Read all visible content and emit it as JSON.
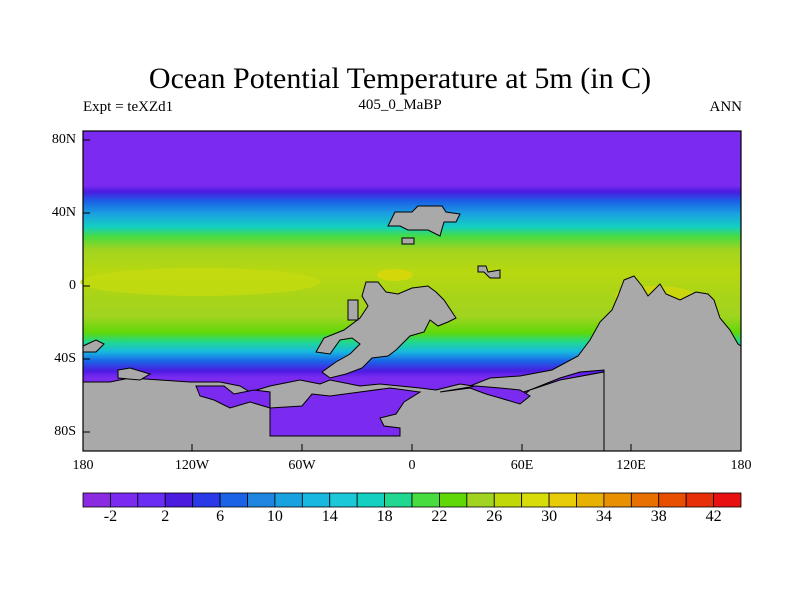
{
  "title": "Ocean Potential Temperature at 5m (in C)",
  "subtitle_left": "Expt = teXZd1",
  "subtitle_center": "405_0_MaBP",
  "subtitle_right": "ANN",
  "lat_labels": [
    "80N",
    "40N",
    "0",
    "40S",
    "80S"
  ],
  "lon_labels": [
    "180",
    "120W",
    "60W",
    "0",
    "60E",
    "120E",
    "180"
  ],
  "colorbar": {
    "labels": [
      "-2",
      "2",
      "6",
      "10",
      "14",
      "18",
      "22",
      "26",
      "30",
      "34",
      "38",
      "42"
    ],
    "colors": [
      "#8a2be2",
      "#7b2bf0",
      "#6a2df5",
      "#4b1be0",
      "#2b3ae8",
      "#1a62e6",
      "#1e86e0",
      "#1aa2e0",
      "#18b8e0",
      "#1ac8d8",
      "#14d0c0",
      "#20d890",
      "#48dc40",
      "#60d808",
      "#a0d420",
      "#c0d808",
      "#d8dc08",
      "#e8cc08",
      "#e8b000",
      "#e89000",
      "#e87000",
      "#e85000",
      "#e83008",
      "#e81010"
    ]
  },
  "land_color": "#a9a9a9"
}
